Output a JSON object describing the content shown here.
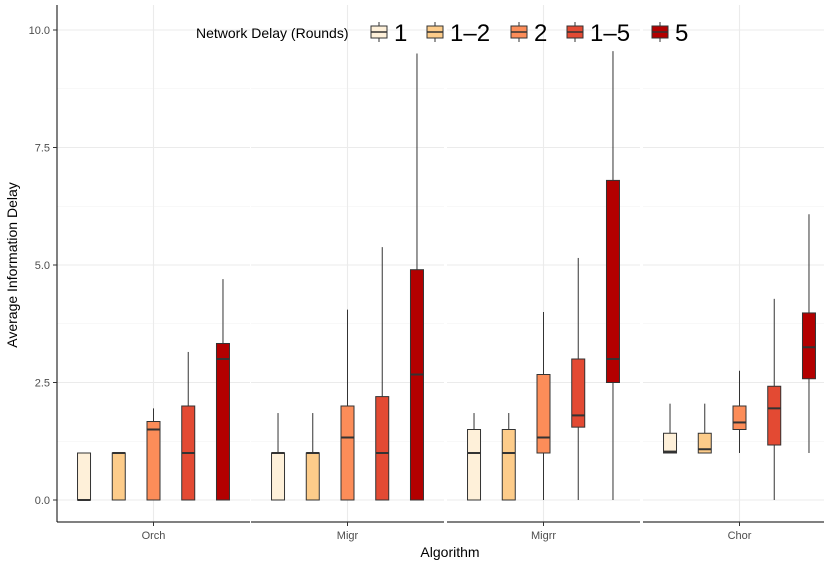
{
  "chart_data": {
    "type": "boxplot",
    "xlabel": "Algorithm",
    "ylabel": "Average Information Delay",
    "ylim": [
      -0.45,
      10.4
    ],
    "yticks": [
      0.0,
      2.5,
      5.0,
      7.5,
      10.0
    ],
    "ytick_labels": [
      "0.0",
      "2.5",
      "5.0",
      "7.5",
      "10.0"
    ],
    "grid": true,
    "legend": {
      "title": "Network Delay (Rounds)",
      "placement": "top",
      "entries": [
        "1",
        "1–2",
        "2",
        "1–5",
        "5"
      ]
    },
    "colors": [
      "#fef0d9",
      "#fdcc8a",
      "#fc8d59",
      "#e34a33",
      "#b30000"
    ],
    "panels": [
      {
        "label": "Orch",
        "boxes": [
          {
            "group": "1",
            "min": 0.0,
            "q1": 0.0,
            "median": 0.0,
            "q3": 1.0,
            "max": 1.0
          },
          {
            "group": "1–2",
            "min": 0.0,
            "q1": 0.0,
            "median": 1.0,
            "q3": 1.0,
            "max": 1.0
          },
          {
            "group": "2",
            "min": 0.0,
            "q1": 0.0,
            "median": 1.5,
            "q3": 1.67,
            "max": 1.95
          },
          {
            "group": "1–5",
            "min": 0.0,
            "q1": 0.0,
            "median": 1.0,
            "q3": 2.0,
            "max": 3.15
          },
          {
            "group": "5",
            "min": 0.0,
            "q1": 0.0,
            "median": 3.0,
            "q3": 3.33,
            "max": 4.7
          }
        ]
      },
      {
        "label": "Migr",
        "boxes": [
          {
            "group": "1",
            "min": 0.0,
            "q1": 0.0,
            "median": 1.0,
            "q3": 1.0,
            "max": 1.85
          },
          {
            "group": "1–2",
            "min": 0.0,
            "q1": 0.0,
            "median": 1.0,
            "q3": 1.0,
            "max": 1.85
          },
          {
            "group": "2",
            "min": 0.0,
            "q1": 0.0,
            "median": 1.33,
            "q3": 2.0,
            "max": 4.05
          },
          {
            "group": "1–5",
            "min": 0.0,
            "q1": 0.0,
            "median": 1.0,
            "q3": 2.2,
            "max": 5.38
          },
          {
            "group": "5",
            "min": 0.0,
            "q1": 0.0,
            "median": 2.67,
            "q3": 4.9,
            "max": 9.5
          }
        ]
      },
      {
        "label": "Migrr",
        "boxes": [
          {
            "group": "1",
            "min": 0.0,
            "q1": 0.0,
            "median": 1.0,
            "q3": 1.5,
            "max": 1.85
          },
          {
            "group": "1–2",
            "min": 0.0,
            "q1": 0.0,
            "median": 1.0,
            "q3": 1.5,
            "max": 1.85
          },
          {
            "group": "2",
            "min": 0.0,
            "q1": 1.0,
            "median": 1.33,
            "q3": 2.67,
            "max": 4.0
          },
          {
            "group": "1–5",
            "min": 0.0,
            "q1": 1.55,
            "median": 1.8,
            "q3": 3.0,
            "max": 5.15
          },
          {
            "group": "5",
            "min": 0.0,
            "q1": 2.5,
            "median": 3.0,
            "q3": 6.8,
            "max": 9.55
          }
        ]
      },
      {
        "label": "Chor",
        "boxes": [
          {
            "group": "1",
            "min": 1.0,
            "q1": 1.0,
            "median": 1.03,
            "q3": 1.42,
            "max": 2.05
          },
          {
            "group": "1–2",
            "min": 1.0,
            "q1": 1.0,
            "median": 1.08,
            "q3": 1.42,
            "max": 2.05
          },
          {
            "group": "2",
            "min": 1.0,
            "q1": 1.5,
            "median": 1.65,
            "q3": 2.0,
            "max": 2.75
          },
          {
            "group": "1–5",
            "min": 0.0,
            "q1": 1.17,
            "median": 1.95,
            "q3": 2.42,
            "max": 4.28
          },
          {
            "group": "5",
            "min": 1.0,
            "q1": 2.58,
            "median": 3.25,
            "q3": 3.98,
            "max": 6.08
          }
        ]
      }
    ]
  }
}
